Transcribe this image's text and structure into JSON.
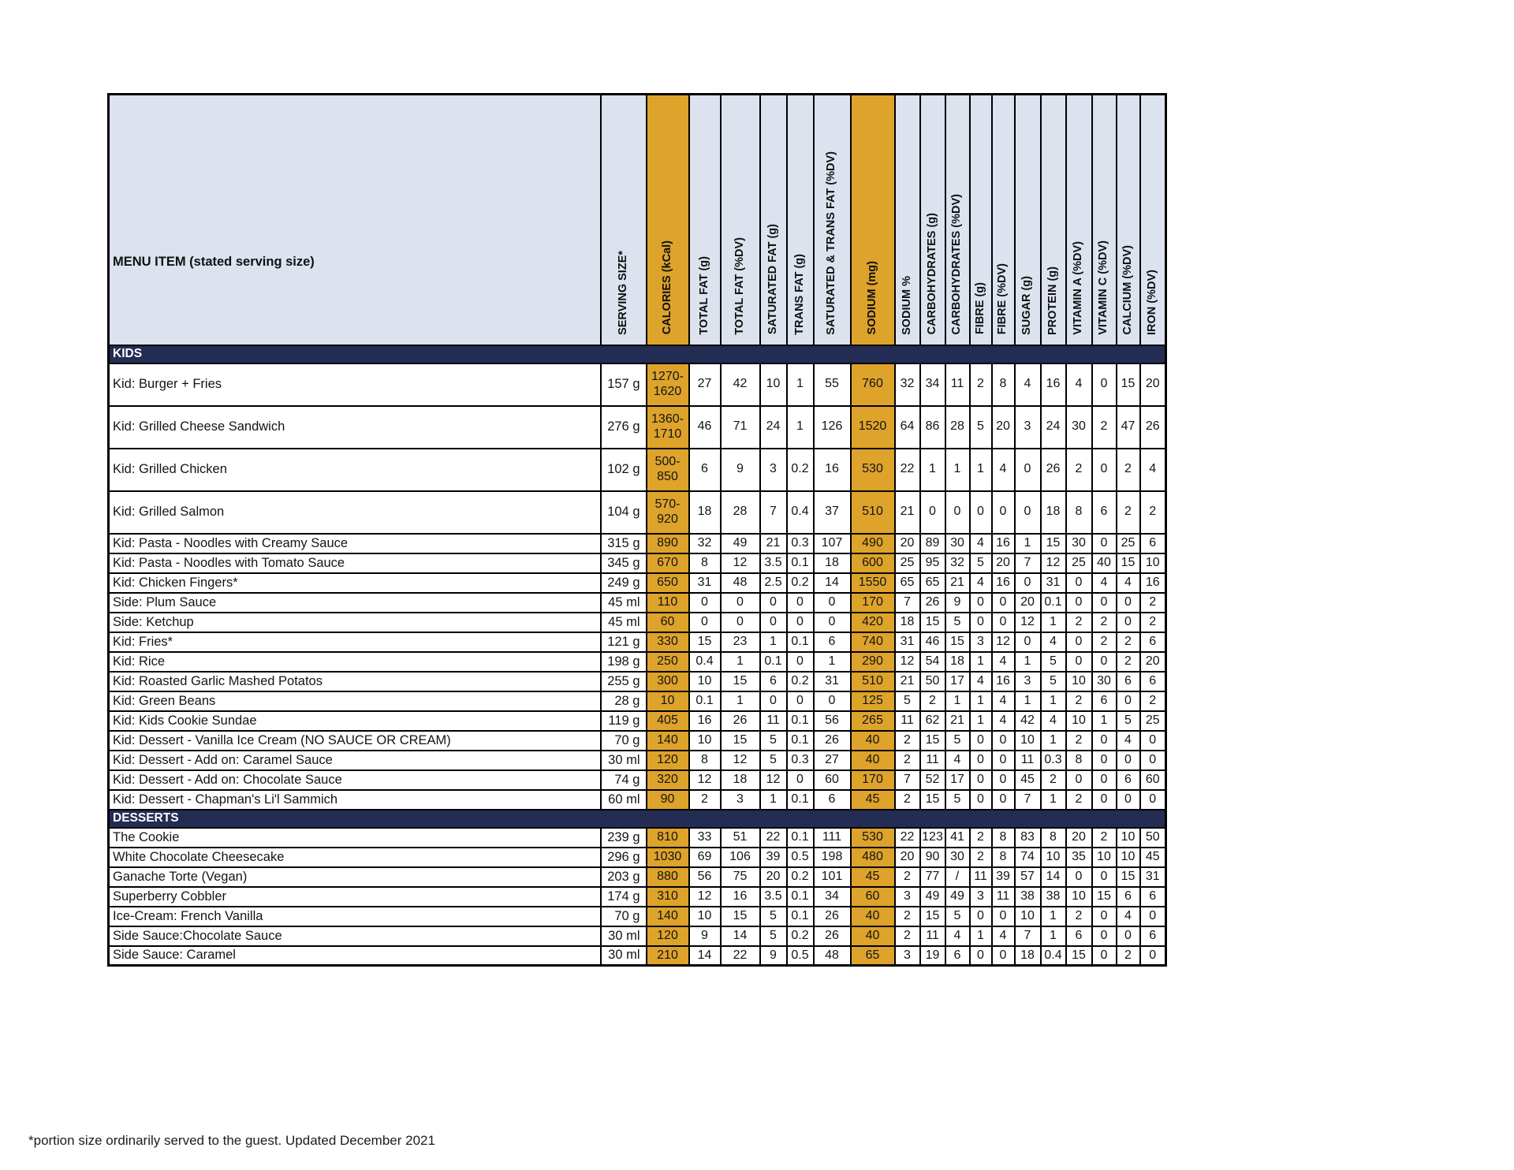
{
  "table": {
    "columns": [
      {
        "label": "MENU ITEM (stated serving size)",
        "highlight": false
      },
      {
        "label": "SERVING SIZE*",
        "highlight": false
      },
      {
        "label": "CALORIES (kCal)",
        "highlight": true
      },
      {
        "label": "TOTAL FAT (g)",
        "highlight": false
      },
      {
        "label": "TOTAL FAT (%DV)",
        "highlight": false
      },
      {
        "label": "SATURATED FAT (g)",
        "highlight": false
      },
      {
        "label": "TRANS FAT (g)",
        "highlight": false
      },
      {
        "label": "SATURATED & TRANS FAT (%DV)",
        "highlight": false
      },
      {
        "label": "SODIUM (mg)",
        "highlight": true
      },
      {
        "label": "SODIUM %",
        "highlight": false
      },
      {
        "label": "CARBOHYDRATES (g)",
        "highlight": false
      },
      {
        "label": "CARBOHYDRATES (%DV)",
        "highlight": false
      },
      {
        "label": "FIBRE (g)",
        "highlight": false
      },
      {
        "label": "FIBRE (%DV)",
        "highlight": false
      },
      {
        "label": "SUGAR (g)",
        "highlight": false
      },
      {
        "label": "PROTEIN (g)",
        "highlight": false
      },
      {
        "label": "VITAMIN A (%DV)",
        "highlight": false
      },
      {
        "label": "VITAMIN C (%DV)",
        "highlight": false
      },
      {
        "label": "CALCIUM (%DV)",
        "highlight": false
      },
      {
        "label": "IRON (%DV)",
        "highlight": false
      }
    ],
    "sections": [
      {
        "label": "KIDS",
        "rows": [
          {
            "item": "Kid: Burger + Fries",
            "serving": "157 g",
            "values": [
              "1270-1620",
              "27",
              "42",
              "10",
              "1",
              "55",
              "760",
              "32",
              "34",
              "11",
              "2",
              "8",
              "4",
              "16",
              "4",
              "0",
              "15",
              "20"
            ]
          },
          {
            "item": "Kid: Grilled Cheese Sandwich",
            "serving": "276 g",
            "values": [
              "1360-1710",
              "46",
              "71",
              "24",
              "1",
              "126",
              "1520",
              "64",
              "86",
              "28",
              "5",
              "20",
              "3",
              "24",
              "30",
              "2",
              "47",
              "26"
            ]
          },
          {
            "item": "Kid: Grilled Chicken",
            "serving": "102 g",
            "values": [
              "500-850",
              "6",
              "9",
              "3",
              "0.2",
              "16",
              "530",
              "22",
              "1",
              "1",
              "1",
              "4",
              "0",
              "26",
              "2",
              "0",
              "2",
              "4"
            ]
          },
          {
            "item": "Kid: Grilled Salmon",
            "serving": "104 g",
            "values": [
              "570-920",
              "18",
              "28",
              "7",
              "0.4",
              "37",
              "510",
              "21",
              "0",
              "0",
              "0",
              "0",
              "0",
              "18",
              "8",
              "6",
              "2",
              "2"
            ]
          },
          {
            "item": "Kid: Pasta - Noodles with Creamy Sauce",
            "serving": "315 g",
            "values": [
              "890",
              "32",
              "49",
              "21",
              "0.3",
              "107",
              "490",
              "20",
              "89",
              "30",
              "4",
              "16",
              "1",
              "15",
              "30",
              "0",
              "25",
              "6"
            ]
          },
          {
            "item": "Kid: Pasta - Noodles with Tomato Sauce",
            "serving": "345 g",
            "values": [
              "670",
              "8",
              "12",
              "3.5",
              "0.1",
              "18",
              "600",
              "25",
              "95",
              "32",
              "5",
              "20",
              "7",
              "12",
              "25",
              "40",
              "15",
              "10"
            ]
          },
          {
            "item": "Kid: Chicken Fingers*",
            "serving": "249 g",
            "values": [
              "650",
              "31",
              "48",
              "2.5",
              "0.2",
              "14",
              "1550",
              "65",
              "65",
              "21",
              "4",
              "16",
              "0",
              "31",
              "0",
              "4",
              "4",
              "16"
            ]
          },
          {
            "item": "Side: Plum Sauce",
            "serving": "45 ml",
            "values": [
              "110",
              "0",
              "0",
              "0",
              "0",
              "0",
              "170",
              "7",
              "26",
              "9",
              "0",
              "0",
              "20",
              "0.1",
              "0",
              "0",
              "0",
              "2"
            ]
          },
          {
            "item": "Side: Ketchup",
            "serving": "45 ml",
            "values": [
              "60",
              "0",
              "0",
              "0",
              "0",
              "0",
              "420",
              "18",
              "15",
              "5",
              "0",
              "0",
              "12",
              "1",
              "2",
              "2",
              "0",
              "2"
            ]
          },
          {
            "item": "Kid: Fries*",
            "serving": "121 g",
            "values": [
              "330",
              "15",
              "23",
              "1",
              "0.1",
              "6",
              "740",
              "31",
              "46",
              "15",
              "3",
              "12",
              "0",
              "4",
              "0",
              "2",
              "2",
              "6"
            ]
          },
          {
            "item": "Kid: Rice",
            "serving": "198 g",
            "values": [
              "250",
              "0.4",
              "1",
              "0.1",
              "0",
              "1",
              "290",
              "12",
              "54",
              "18",
              "1",
              "4",
              "1",
              "5",
              "0",
              "0",
              "2",
              "20"
            ]
          },
          {
            "item": "Kid: Roasted Garlic Mashed Potatos",
            "serving": "255 g",
            "values": [
              "300",
              "10",
              "15",
              "6",
              "0.2",
              "31",
              "510",
              "21",
              "50",
              "17",
              "4",
              "16",
              "3",
              "5",
              "10",
              "30",
              "6",
              "6"
            ]
          },
          {
            "item": "Kid: Green Beans",
            "serving": "28 g",
            "values": [
              "10",
              "0.1",
              "1",
              "0",
              "0",
              "0",
              "125",
              "5",
              "2",
              "1",
              "1",
              "4",
              "1",
              "1",
              "2",
              "6",
              "0",
              "2"
            ]
          },
          {
            "item": "Kid: Kids Cookie Sundae",
            "serving": "119 g",
            "values": [
              "405",
              "16",
              "26",
              "11",
              "0.1",
              "56",
              "265",
              "11",
              "62",
              "21",
              "1",
              "4",
              "42",
              "4",
              "10",
              "1",
              "5",
              "25"
            ]
          },
          {
            "item": "Kid: Dessert  - Vanilla Ice Cream (NO SAUCE OR CREAM)",
            "serving": "70 g",
            "values": [
              "140",
              "10",
              "15",
              "5",
              "0.1",
              "26",
              "40",
              "2",
              "15",
              "5",
              "0",
              "0",
              "10",
              "1",
              "2",
              "0",
              "4",
              "0"
            ]
          },
          {
            "item": "Kid: Dessert  - Add on: Caramel Sauce",
            "serving": "30 ml",
            "values": [
              "120",
              "8",
              "12",
              "5",
              "0.3",
              "27",
              "40",
              "2",
              "11",
              "4",
              "0",
              "0",
              "11",
              "0.3",
              "8",
              "0",
              "0",
              "0"
            ]
          },
          {
            "item": "Kid: Dessert  - Add on: Chocolate Sauce",
            "serving": "74 g",
            "values": [
              "320",
              "12",
              "18",
              "12",
              "0",
              "60",
              "170",
              "7",
              "52",
              "17",
              "0",
              "0",
              "45",
              "2",
              "0",
              "0",
              "6",
              "60"
            ]
          },
          {
            "item": "Kid: Dessert  - Chapman's Li'l  Sammich",
            "serving": "60 ml",
            "values": [
              "90",
              "2",
              "3",
              "1",
              "0.1",
              "6",
              "45",
              "2",
              "15",
              "5",
              "0",
              "0",
              "7",
              "1",
              "2",
              "0",
              "0",
              "0"
            ]
          }
        ]
      },
      {
        "label": "DESSERTS",
        "rows": [
          {
            "item": "The Cookie",
            "serving": "239 g",
            "values": [
              "810",
              "33",
              "51",
              "22",
              "0.1",
              "111",
              "530",
              "22",
              "123",
              "41",
              "2",
              "8",
              "83",
              "8",
              "20",
              "2",
              "10",
              "50"
            ]
          },
          {
            "item": "White Chocolate Cheesecake",
            "serving": "296 g",
            "values": [
              "1030",
              "69",
              "106",
              "39",
              "0.5",
              "198",
              "480",
              "20",
              "90",
              "30",
              "2",
              "8",
              "74",
              "10",
              "35",
              "10",
              "10",
              "45"
            ]
          },
          {
            "item": "Ganache Torte (Vegan)",
            "serving": "203 g",
            "values": [
              "880",
              "56",
              "75",
              "20",
              "0.2",
              "101",
              "45",
              "2",
              "77",
              "/",
              "11",
              "39",
              "57",
              "14",
              "0",
              "0",
              "15",
              "31"
            ]
          },
          {
            "item": "Superberry Cobbler",
            "serving": "174 g",
            "values": [
              "310",
              "12",
              "16",
              "3.5",
              "0.1",
              "34",
              "60",
              "3",
              "49",
              "49",
              "3",
              "11",
              "38",
              "38",
              "10",
              "15",
              "6",
              "6"
            ]
          },
          {
            "item": "Ice-Cream: French Vanilla",
            "serving": "70 g",
            "values": [
              "140",
              "10",
              "15",
              "5",
              "0.1",
              "26",
              "40",
              "2",
              "15",
              "5",
              "0",
              "0",
              "10",
              "1",
              "2",
              "0",
              "4",
              "0"
            ]
          },
          {
            "item": "Side Sauce:Chocolate Sauce",
            "serving": "30 ml",
            "values": [
              "120",
              "9",
              "14",
              "5",
              "0.2",
              "26",
              "40",
              "2",
              "11",
              "4",
              "1",
              "4",
              "7",
              "1",
              "6",
              "0",
              "0",
              "6"
            ]
          },
          {
            "item": "Side Sauce: Caramel",
            "serving": "30 ml",
            "values": [
              "210",
              "14",
              "22",
              "9",
              "0.5",
              "48",
              "65",
              "3",
              "19",
              "6",
              "0",
              "0",
              "18",
              "0.4",
              "15",
              "0",
              "2",
              "0"
            ]
          }
        ]
      }
    ]
  },
  "footer": {
    "note": "*portion size ordinarily served to the guest. Updated December 2021"
  },
  "colors": {
    "highlight": "#DEA32B",
    "section_bar": "#232C52",
    "header_bg": "#DCE3EF",
    "text": "#141414"
  }
}
